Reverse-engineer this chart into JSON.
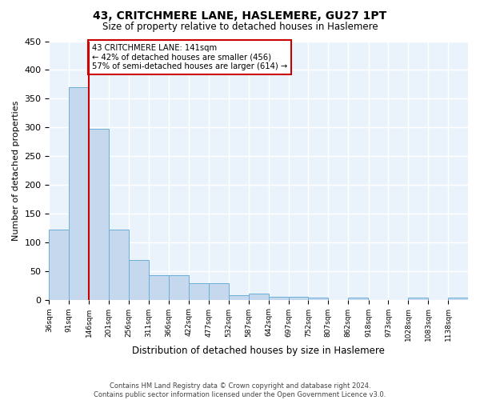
{
  "title": "43, CRITCHMERE LANE, HASLEMERE, GU27 1PT",
  "subtitle": "Size of property relative to detached houses in Haslemere",
  "xlabel": "Distribution of detached houses by size in Haslemere",
  "ylabel": "Number of detached properties",
  "bar_color": "#c5d8ed",
  "bar_edge_color": "#6aaed6",
  "background_color": "#eaf3fb",
  "grid_color": "#ffffff",
  "bins": [
    36,
    91,
    146,
    201,
    256,
    311,
    366,
    422,
    477,
    532,
    587,
    642,
    697,
    752,
    807,
    862,
    918,
    973,
    1028,
    1083,
    1138
  ],
  "bin_labels": [
    "36sqm",
    "91sqm",
    "146sqm",
    "201sqm",
    "256sqm",
    "311sqm",
    "366sqm",
    "422sqm",
    "477sqm",
    "532sqm",
    "587sqm",
    "642sqm",
    "697sqm",
    "752sqm",
    "807sqm",
    "862sqm",
    "918sqm",
    "973sqm",
    "1028sqm",
    "1083sqm",
    "1138sqm"
  ],
  "values": [
    122,
    370,
    297,
    122,
    69,
    43,
    43,
    28,
    28,
    8,
    10,
    5,
    5,
    3,
    0,
    3,
    0,
    0,
    3,
    0,
    3
  ],
  "property_bin_index": 2,
  "vline_color": "#cc0000",
  "annotation_text": "43 CRITCHMERE LANE: 141sqm\n← 42% of detached houses are smaller (456)\n57% of semi-detached houses are larger (614) →",
  "annotation_box_color": "#ffffff",
  "annotation_box_edge": "#cc0000",
  "ylim": [
    0,
    450
  ],
  "yticks": [
    0,
    50,
    100,
    150,
    200,
    250,
    300,
    350,
    400,
    450
  ],
  "footnote": "Contains HM Land Registry data © Crown copyright and database right 2024.\nContains public sector information licensed under the Open Government Licence v3.0."
}
